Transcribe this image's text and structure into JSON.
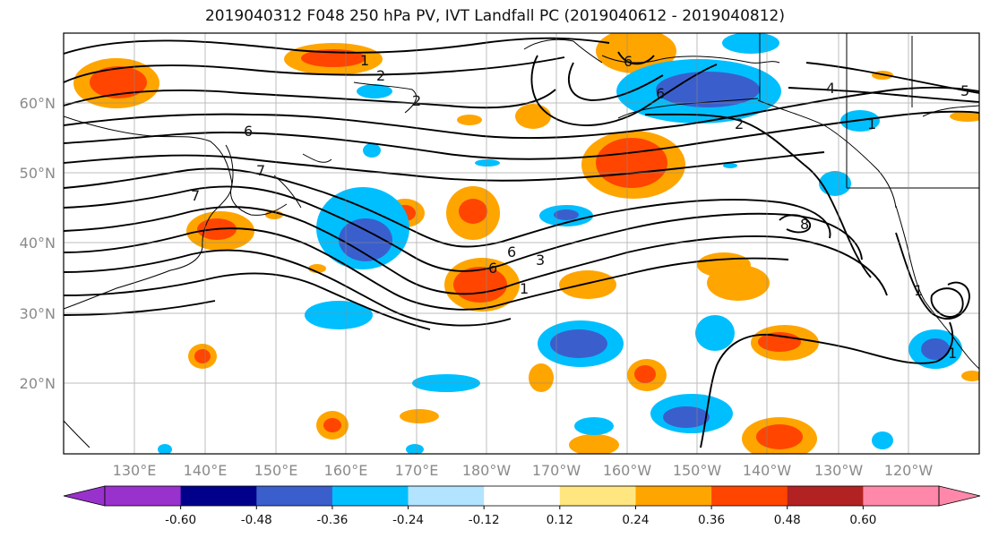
{
  "title": "2019040312 F048 250 hPa PV, IVT Landfall PC (2019040612 - 2019040812)",
  "lat_labels": [
    "60°N",
    "50°N",
    "40°N",
    "30°N",
    "20°N"
  ],
  "lon_labels": [
    "130°E",
    "140°E",
    "150°E",
    "160°E",
    "170°E",
    "180°W",
    "170°W",
    "160°W",
    "150°W",
    "140°W",
    "130°W",
    "120°W"
  ],
  "colorbar": {
    "ticks": [
      "-0.60",
      "-0.48",
      "-0.36",
      "-0.24",
      "-0.12",
      "0.12",
      "0.24",
      "0.36",
      "0.48",
      "0.60"
    ],
    "colors": [
      "#9932cc",
      "#00008b",
      "#3a5fcd",
      "#00bfff",
      "#b2e4ff",
      "#ffffff",
      "#ffe680",
      "#ffa500",
      "#ff4500",
      "#b22222",
      "#ff88aa"
    ]
  },
  "contour_labels": [
    "1",
    "2",
    "6",
    "7",
    "7",
    "6",
    "3",
    "1",
    "6",
    "6",
    "4",
    "2",
    "1",
    "8",
    "5",
    "1",
    "1",
    "6",
    "2"
  ]
}
